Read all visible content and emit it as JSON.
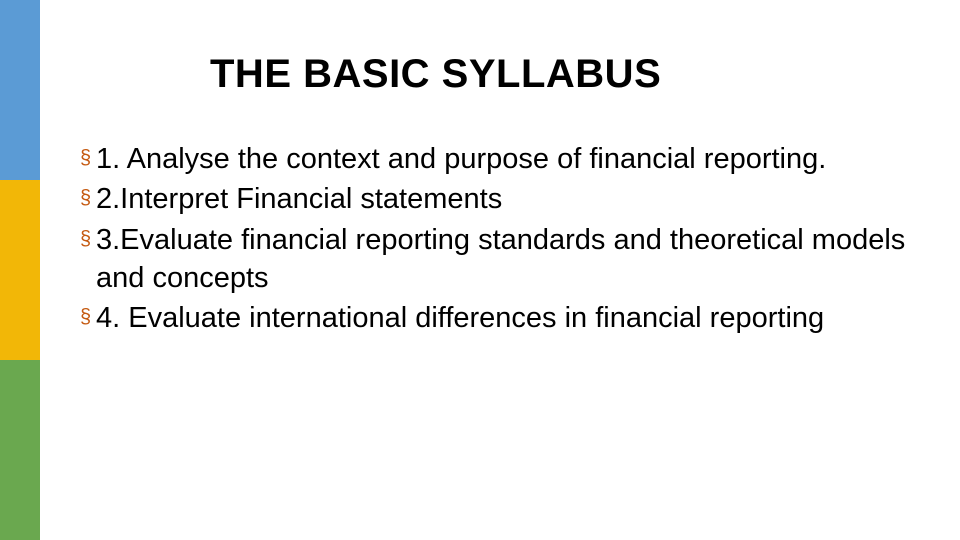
{
  "title": "THE BASIC SYLLABUS",
  "title_fontsize": 40,
  "title_color": "#000000",
  "body_fontsize": 29,
  "body_color": "#000000",
  "background_color": "#ffffff",
  "sidebar": {
    "width": 40,
    "stripes": [
      {
        "color": "#5b9bd5",
        "height": 180
      },
      {
        "color": "#f2b707",
        "height": 180
      },
      {
        "color": "#6aa84f",
        "height": 180
      }
    ]
  },
  "bullet": {
    "glyph": "§",
    "color": "#c55a11"
  },
  "items": [
    "1. Analyse the context and purpose of financial reporting.",
    "2.Interpret Financial statements",
    "3.Evaluate financial reporting standards and theoretical models and concepts",
    "4. Evaluate international differences in financial reporting"
  ]
}
